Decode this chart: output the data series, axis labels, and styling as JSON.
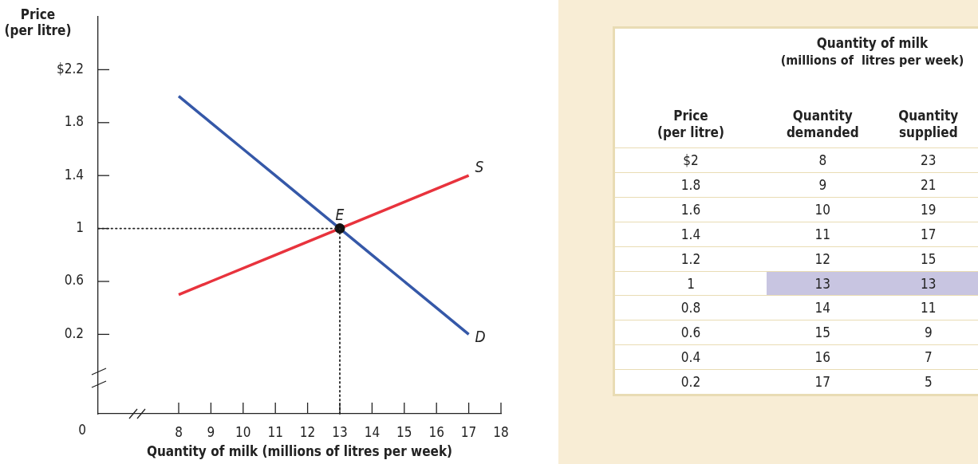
{
  "chart_data": [
    {
      "type": "line",
      "xlabel": "Quantity of milk (millions of litres per week)",
      "ylabel": "Price (per litre)",
      "xlim": [
        5.5,
        18
      ],
      "ylim": [
        -0.4,
        2.6
      ],
      "xticks": [
        8,
        9,
        10,
        11,
        12,
        13,
        14,
        15,
        16,
        17,
        18
      ],
      "yticks": [
        0.2,
        0.6,
        1,
        1.4,
        1.8,
        {
          "value": 2.2,
          "label": "$2.2"
        }
      ],
      "legend": false,
      "series": [
        {
          "name": "D",
          "color": "#3558a8",
          "x": [
            8,
            9,
            10,
            11,
            12,
            13,
            14,
            15,
            16,
            17
          ],
          "values": [
            2,
            1.8,
            1.6,
            1.4,
            1.2,
            1,
            0.8,
            0.6,
            0.4,
            0.2
          ]
        },
        {
          "name": "S",
          "color": "#e8333d",
          "x": [
            8,
            9,
            11,
            13,
            15,
            17
          ],
          "values": [
            0.5,
            0.6,
            0.8,
            1,
            1.2,
            1.4
          ]
        },
        {
          "type": "scatter",
          "marker": "circle",
          "color": "#111111",
          "x": [
            13
          ],
          "values": [
            1
          ]
        }
      ],
      "ref_lines": [
        {
          "axis": "y",
          "value": 1,
          "line_style": "dotted",
          "color": "#222222"
        },
        {
          "axis": "x",
          "value": 13,
          "line_style": "dotted",
          "color": "#222222"
        }
      ],
      "annotations": [
        "0",
        {
          "text": "E",
          "x": 13,
          "y": 1
        }
      ]
    },
    {
      "type": "heatmap",
      "title": "Quantity of milk",
      "subtitle": "(millions of  litres per week)",
      "ylabel": "Price (per litre)",
      "categories": [
        "Quantity demanded",
        "Quantity supplied"
      ],
      "y_categories": [
        "$2",
        "1.8",
        "1.6",
        "1.4",
        "1.2",
        "1",
        "0.8",
        "0.6",
        "0.4",
        "0.2"
      ],
      "data_labels": true,
      "cells": [
        [
          8,
          23
        ],
        [
          9,
          21
        ],
        [
          10,
          19
        ],
        [
          11,
          17
        ],
        [
          12,
          15
        ],
        [
          13,
          13
        ],
        [
          14,
          11
        ],
        [
          15,
          9
        ],
        [
          16,
          7
        ],
        [
          17,
          5
        ]
      ]
    }
  ]
}
